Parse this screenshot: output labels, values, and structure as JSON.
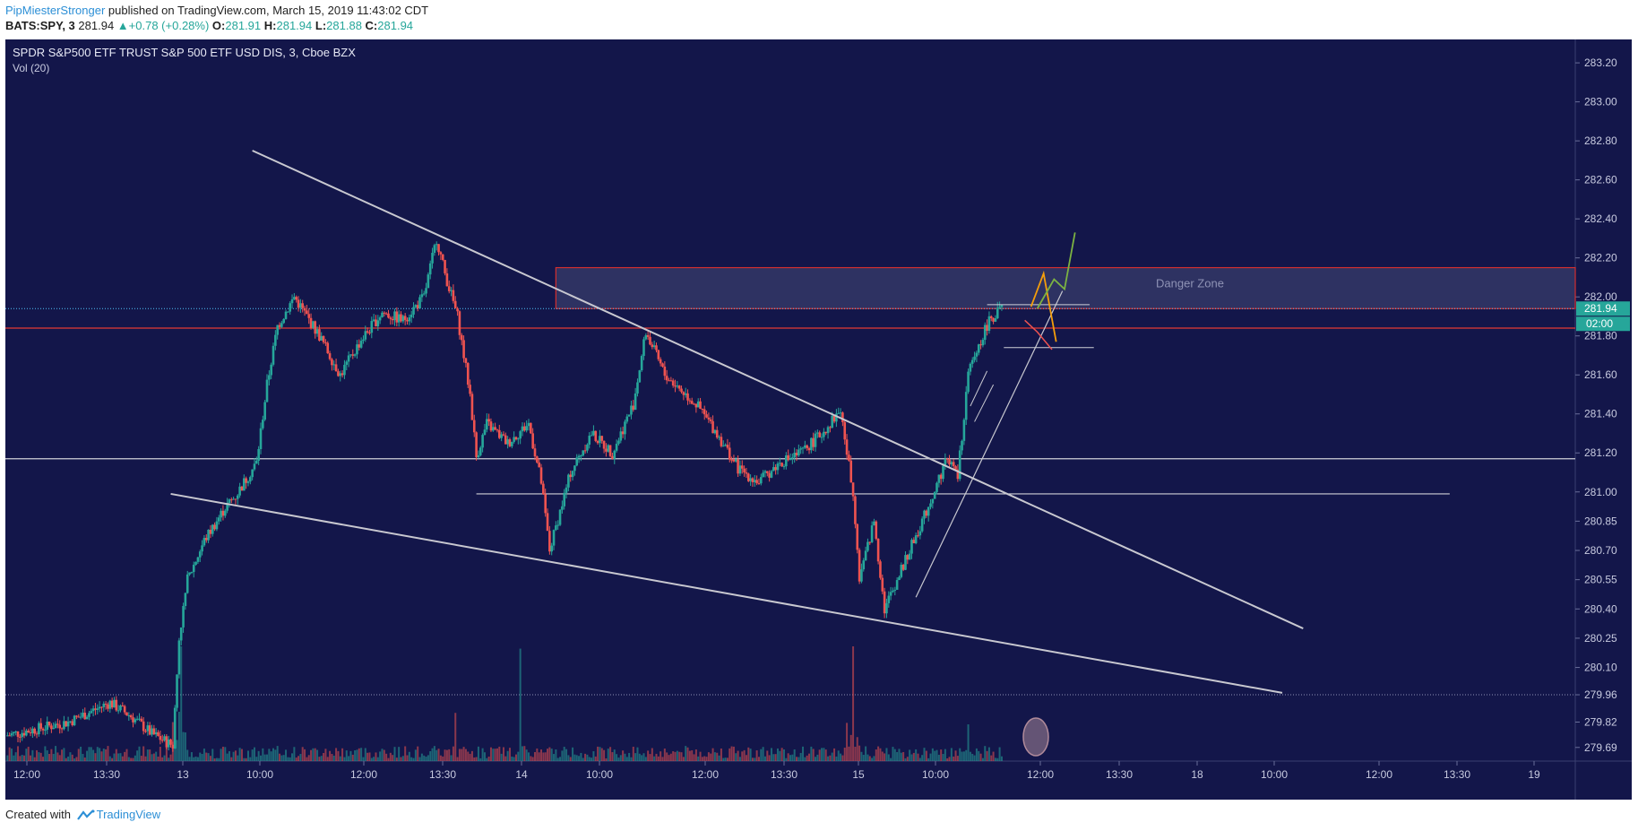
{
  "header": {
    "user": "PipMiesterStronger",
    "published": " published on TradingView.com, March 15, 2019 11:43:02 CDT"
  },
  "quote": {
    "symbol": "BATS:SPY, 3",
    "last": "281.94",
    "change": "+0.78 (+0.28%)",
    "o_label": "O:",
    "o": "281.91",
    "h_label": "H:",
    "h": "281.94",
    "l_label": "L:",
    "l": "281.88",
    "c_label": "C:",
    "c": "281.94"
  },
  "footer": {
    "created": "Created with",
    "brand": "TradingView"
  },
  "colors": {
    "background": "#13164a",
    "up": "#26a69a",
    "down": "#ef5350",
    "trendline": "#c8c8d0",
    "zone": "#d32f2f",
    "orange": "#f59e0b",
    "green": "#7cb342",
    "red_line": "#e53935"
  },
  "chart_data": {
    "type": "candlestick",
    "title": "SPDR S&P500 ETF TRUST S&P 500 ETF USD DIS, 3, Cboe BZX",
    "indicator": "Vol (20)",
    "ylim": [
      279.62,
      283.32
    ],
    "y_ticks": [
      "283.20",
      "283.00",
      "282.80",
      "282.60",
      "282.40",
      "282.20",
      "282.00",
      "281.80",
      "281.60",
      "281.40",
      "281.20",
      "281.00",
      "280.85",
      "280.70",
      "280.55",
      "280.40",
      "280.25",
      "280.10",
      "279.96",
      "279.82",
      "279.69"
    ],
    "x_ticks": [
      "12:00",
      "13:30",
      "13",
      "10:00",
      "12:00",
      "13:30",
      "14",
      "10:00",
      "12:00",
      "13:30",
      "15",
      "10:00",
      "12:00",
      "13:30",
      "18",
      "10:00",
      "12:00",
      "13:30",
      "19"
    ],
    "last_price_label": "281.94",
    "countdown_label": "02:00",
    "zone_label": "Danger Zone",
    "price_path": [
      [
        0,
        279.75
      ],
      [
        3,
        279.82
      ],
      [
        5,
        279.92
      ],
      [
        6,
        279.85
      ],
      [
        7,
        279.76
      ],
      [
        8,
        279.7
      ],
      [
        8.3,
        280.25
      ],
      [
        8.7,
        280.55
      ],
      [
        9.5,
        280.75
      ],
      [
        10.5,
        280.92
      ],
      [
        11,
        280.98
      ],
      [
        12,
        281.15
      ],
      [
        12.5,
        281.55
      ],
      [
        13,
        281.85
      ],
      [
        13.8,
        282.0
      ],
      [
        15,
        281.8
      ],
      [
        16,
        281.6
      ],
      [
        17,
        281.78
      ],
      [
        18,
        281.92
      ],
      [
        19,
        281.88
      ],
      [
        20,
        282.0
      ],
      [
        20.6,
        282.3
      ],
      [
        21,
        282.12
      ],
      [
        21.6,
        281.9
      ],
      [
        22.2,
        281.5
      ],
      [
        22.5,
        281.18
      ],
      [
        23,
        281.35
      ],
      [
        24,
        281.25
      ],
      [
        25,
        281.35
      ],
      [
        25.6,
        281.05
      ],
      [
        26,
        280.7
      ],
      [
        27,
        281.1
      ],
      [
        28,
        281.3
      ],
      [
        29,
        281.2
      ],
      [
        30,
        281.45
      ],
      [
        30.6,
        281.82
      ],
      [
        31.5,
        281.6
      ],
      [
        32,
        281.55
      ],
      [
        33,
        281.45
      ],
      [
        34,
        281.3
      ],
      [
        35,
        281.12
      ],
      [
        36,
        281.05
      ],
      [
        37,
        281.15
      ],
      [
        38,
        281.2
      ],
      [
        39,
        281.3
      ],
      [
        39.9,
        281.42
      ],
      [
        40.2,
        281.2
      ],
      [
        40.5,
        281.0
      ],
      [
        40.8,
        280.55
      ],
      [
        41.5,
        280.85
      ],
      [
        42,
        280.4
      ],
      [
        43,
        280.65
      ],
      [
        44,
        280.9
      ],
      [
        45,
        281.18
      ],
      [
        45.5,
        281.08
      ],
      [
        46,
        281.6
      ],
      [
        46.5,
        281.75
      ],
      [
        47,
        281.88
      ],
      [
        47.7,
        281.95
      ]
    ],
    "volume_spikes": [
      {
        "x": 8.4,
        "v": 1.0
      },
      {
        "x": 21.5,
        "v": 0.42
      },
      {
        "x": 24.6,
        "v": 0.98
      },
      {
        "x": 40.5,
        "v": 1.0
      },
      {
        "x": 46,
        "v": 0.32
      }
    ],
    "annotations": {
      "danger_zone": {
        "x0": 26.3,
        "x1": 75,
        "y0": 281.94,
        "y1": 282.15
      },
      "resistance_red": 281.84,
      "support_white": 281.17,
      "support_white2": {
        "x0": 22.5,
        "x1": 69,
        "y": 280.99
      },
      "dotted_price": 281.94,
      "dotted_low": 279.96,
      "upper_trendline": {
        "x0": 11.8,
        "y0": 282.75,
        "x1": 62,
        "y1": 280.3
      },
      "lower_trendline": {
        "x0": 7.9,
        "y0": 280.99,
        "x1": 61,
        "y1": 279.97
      },
      "rising_trendline": {
        "x0": 43.5,
        "y0": 280.46,
        "x1": 50.5,
        "y1": 282.03
      }
    }
  }
}
